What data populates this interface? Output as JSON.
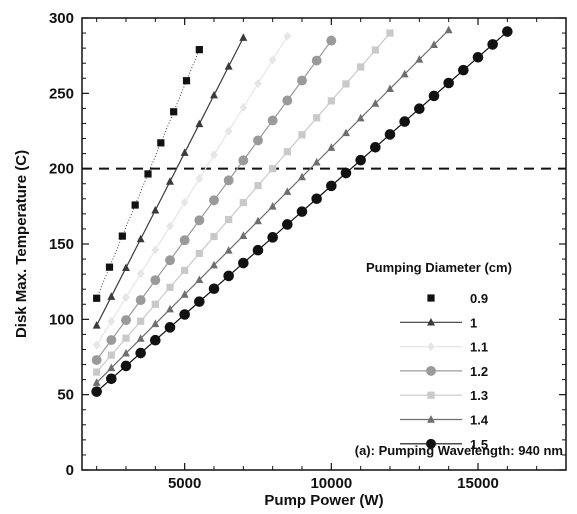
{
  "chart_data": {
    "type": "line",
    "xlabel": "Pump Power (W)",
    "ylabel": "Disk Max. Temperature (C)",
    "xlim": [
      1500,
      18000
    ],
    "ylim": [
      0,
      300
    ],
    "x_ticks": [
      5000,
      10000,
      15000
    ],
    "y_ticks": [
      0,
      50,
      100,
      150,
      200,
      250,
      300
    ],
    "grid": false,
    "reference_line": {
      "y": 200,
      "style": "dashed"
    },
    "legend": {
      "title": "Pumping Diameter (cm)",
      "placement": "right"
    },
    "annotation": "(a): Pumping Wavelength: 940 nm",
    "series": [
      {
        "name": "0.9",
        "color": "#111111",
        "marker": "square",
        "line": false,
        "x_start": 2000,
        "x_end": 5500,
        "y_start": 114,
        "y_end": 279,
        "n_points": 9
      },
      {
        "name": "1",
        "color": "#3a3a3a",
        "marker": "triangle",
        "line": true,
        "x_start": 2000,
        "x_end": 7000,
        "y_start": 96,
        "y_end": 287,
        "n_points": 11
      },
      {
        "name": "1.1",
        "color": "#e6e6e6",
        "marker": "diamond",
        "line": true,
        "x_start": 2000,
        "x_end": 8500,
        "y_start": 83,
        "y_end": 288,
        "n_points": 14
      },
      {
        "name": "1.2",
        "color": "#9a9a9a",
        "marker": "circle",
        "line": true,
        "x_start": 2000,
        "x_end": 10000,
        "y_start": 73,
        "y_end": 285,
        "n_points": 17
      },
      {
        "name": "1.3",
        "color": "#c9c9c9",
        "marker": "square",
        "line": true,
        "x_start": 2000,
        "x_end": 12000,
        "y_start": 65,
        "y_end": 290,
        "n_points": 21
      },
      {
        "name": "1.4",
        "color": "#6e6e6e",
        "marker": "triangle",
        "line": true,
        "x_start": 2000,
        "x_end": 14000,
        "y_start": 58,
        "y_end": 292,
        "n_points": 25
      },
      {
        "name": "1.5",
        "color": "#111111",
        "marker": "circle",
        "line": true,
        "x_start": 2000,
        "x_end": 16000,
        "y_start": 52,
        "y_end": 291,
        "n_points": 29
      }
    ]
  }
}
